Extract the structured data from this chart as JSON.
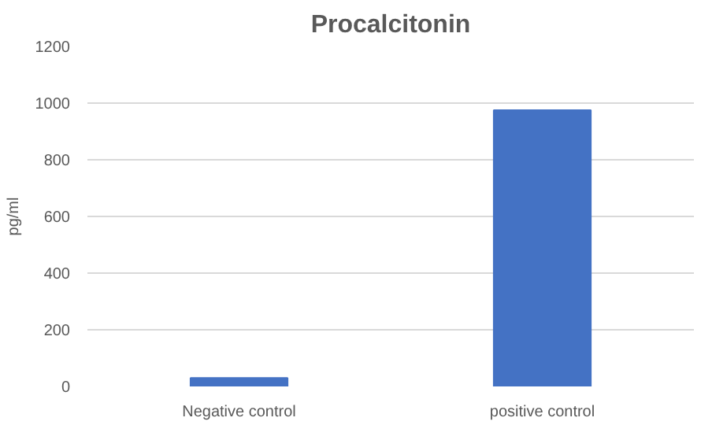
{
  "chart_data": {
    "type": "bar",
    "title": "Procalcitonin",
    "ylabel": "pg/ml",
    "categories": [
      "Negative control",
      "positive control"
    ],
    "values": [
      30,
      975
    ],
    "color": "#4472c4",
    "ylim": [
      0,
      1200
    ],
    "yticks": [
      0,
      200,
      400,
      600,
      800,
      1000,
      1200
    ],
    "grid": "y"
  }
}
